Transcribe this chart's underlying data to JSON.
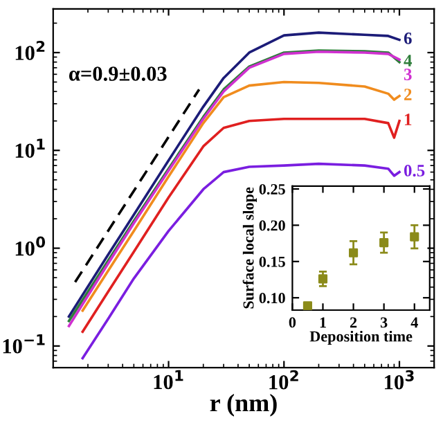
{
  "chart_data": [
    {
      "type": "line",
      "xlabel": "r (nm)",
      "log": "xy",
      "xlim": [
        1,
        2000
      ],
      "ylim": [
        0.06,
        280
      ],
      "xticks": [
        {
          "value": 10,
          "label": "10$^{1}$"
        },
        {
          "value": 100,
          "label": "10$^{2}$"
        },
        {
          "value": 1000,
          "label": "10$^{3}$"
        }
      ],
      "yticks": [
        {
          "value": 0.1,
          "label": "10$^{−1}$"
        },
        {
          "value": 1,
          "label": "10$^{0}$"
        },
        {
          "value": 10,
          "label": "10$^{1}$"
        },
        {
          "value": 100,
          "label": "10$^{2}$"
        }
      ],
      "legend": false,
      "grid": false,
      "annotations": [
        "α=0.9±0.03"
      ],
      "series": [
        {
          "name": "6",
          "color": "#1c1c78",
          "x": [
            1.37,
            3,
            5,
            10,
            20,
            30,
            50,
            100,
            200,
            500,
            800,
            1000
          ],
          "values": [
            0.2,
            0.86,
            2.2,
            7.9,
            28,
            55,
            100,
            150,
            160,
            152,
            148,
            135
          ]
        },
        {
          "name": "4",
          "color": "#2e7d3a",
          "x": [
            1.37,
            3,
            5,
            10,
            20,
            30,
            50,
            100,
            200,
            500,
            800,
            1000
          ],
          "values": [
            0.18,
            0.75,
            1.9,
            6.5,
            22,
            42,
            72,
            100,
            105,
            103,
            100,
            80
          ]
        },
        {
          "name": "3",
          "color": "#d030d0",
          "x": [
            1.37,
            3,
            5,
            10,
            20,
            30,
            50,
            100,
            200,
            500,
            800,
            1000
          ],
          "values": [
            0.16,
            0.7,
            1.8,
            6.2,
            21,
            40,
            70,
            97,
            102,
            100,
            97,
            85
          ]
        },
        {
          "name": "2",
          "color": "#f08c1e",
          "x": [
            1.8,
            3,
            5,
            10,
            20,
            30,
            50,
            100,
            200,
            500,
            800,
            900,
            1000
          ],
          "values": [
            0.23,
            0.59,
            1.5,
            5.4,
            19,
            35,
            46,
            50,
            49,
            45,
            38,
            33,
            36
          ]
        },
        {
          "name": "1",
          "color": "#e02020",
          "x": [
            1.8,
            3,
            5,
            10,
            20,
            30,
            50,
            100,
            200,
            500,
            800,
            900,
            1000
          ],
          "values": [
            0.14,
            0.36,
            0.92,
            3.3,
            11,
            17,
            20,
            21,
            21,
            21,
            19,
            13.5,
            20
          ]
        },
        {
          "name": "0.5",
          "color": "#7a1ee0",
          "x": [
            1.8,
            3,
            5,
            10,
            20,
            30,
            50,
            100,
            200,
            500,
            800,
            900,
            1000
          ],
          "values": [
            0.075,
            0.19,
            0.49,
            1.5,
            4,
            6,
            6.8,
            7,
            7.3,
            7,
            6.5,
            5.5,
            6
          ]
        },
        {
          "color": "#000000",
          "line_style": "dashed",
          "x": [
            1.55,
            18.4
          ],
          "values": [
            0.45,
            42
          ]
        }
      ]
    },
    {
      "type": "scatter",
      "xlabel": "Deposition time",
      "ylabel": "Surface local slope",
      "marker": "square",
      "grid": false,
      "xlim": [
        0,
        4.5
      ],
      "ylim": [
        0.083,
        0.254
      ],
      "xticks": [
        0,
        1,
        2,
        3,
        4
      ],
      "yticks": [
        {
          "value": 0.1,
          "label": "0.10"
        },
        {
          "value": 0.15,
          "label": "0.15"
        },
        {
          "value": 0.2,
          "label": "0.20"
        },
        {
          "value": 0.25,
          "label": "0.25"
        }
      ],
      "x": [
        0.5,
        1,
        2,
        3,
        4
      ],
      "values": [
        0.089,
        0.126,
        0.162,
        0.176,
        0.184
      ],
      "errors": [
        0.002,
        0.01,
        0.016,
        0.014,
        0.016
      ],
      "color": "#8b8b1a"
    }
  ]
}
